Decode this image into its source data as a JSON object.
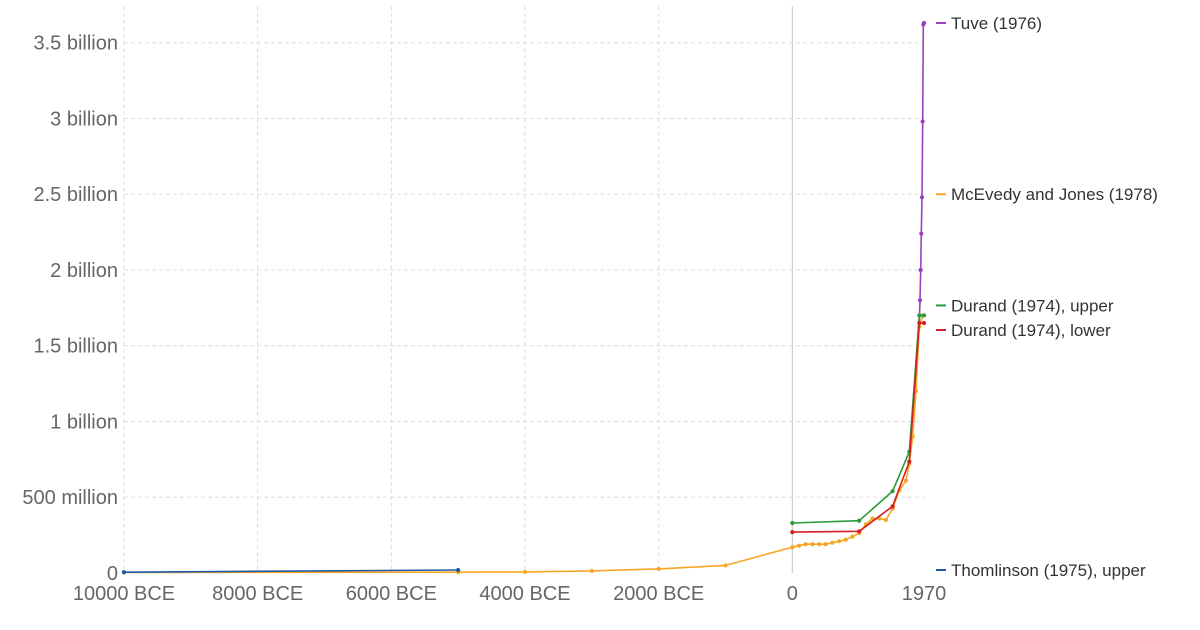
{
  "chart_data": {
    "type": "line",
    "title": "",
    "xlabel": "",
    "ylabel": "",
    "xlim": [
      -10000,
      1970
    ],
    "ylim": [
      0,
      3650000000
    ],
    "grid": true,
    "legend_placement": "right, labels at line ends",
    "x_ticks": [
      {
        "value": -10000,
        "label": "10000 BCE"
      },
      {
        "value": -8000,
        "label": "8000 BCE"
      },
      {
        "value": -6000,
        "label": "6000 BCE"
      },
      {
        "value": -4000,
        "label": "4000 BCE"
      },
      {
        "value": -2000,
        "label": "2000 BCE"
      },
      {
        "value": 0,
        "label": "0"
      },
      {
        "value": 1970,
        "label": "1970"
      }
    ],
    "y_ticks": [
      {
        "value": 0,
        "label": "0"
      },
      {
        "value": 500000000,
        "label": "500 million"
      },
      {
        "value": 1000000000,
        "label": "1 billion"
      },
      {
        "value": 1500000000,
        "label": "1.5 billion"
      },
      {
        "value": 2000000000,
        "label": "2 billion"
      },
      {
        "value": 2500000000,
        "label": "2.5 billion"
      },
      {
        "value": 3000000000,
        "label": "3 billion"
      },
      {
        "value": 3500000000,
        "label": "3.5 billion"
      }
    ],
    "series": [
      {
        "name": "Tuve (1976)",
        "color": "#9b3fc0",
        "x": [
          1900,
          1910,
          1920,
          1930,
          1940,
          1950,
          1960,
          1970
        ],
        "y": [
          1650000000,
          1800000000,
          2000000000,
          2240000000,
          2480000000,
          2980000000,
          3620000000,
          3630000000
        ]
      },
      {
        "name": "McEvedy and Jones (1978)",
        "color": "#f5a623",
        "x": [
          -10000,
          -5000,
          -4000,
          -3000,
          -2000,
          -1000,
          0,
          100,
          200,
          300,
          400,
          500,
          600,
          700,
          800,
          900,
          1000,
          1100,
          1200,
          1300,
          1400,
          1500,
          1600,
          1700,
          1750,
          1800,
          1850,
          1900,
          1950,
          1970
        ],
        "y": [
          4000000,
          5000000,
          7000000,
          14000000,
          27000000,
          50000000,
          170000000,
          180000000,
          190000000,
          190000000,
          190000000,
          190000000,
          200000000,
          210000000,
          220000000,
          240000000,
          265000000,
          320000000,
          360000000,
          360000000,
          350000000,
          425000000,
          545000000,
          610000000,
          720000000,
          900000000,
          1200000000,
          1625000000,
          1700000000,
          1700000000
        ]
      },
      {
        "name": "Durand (1974), upper",
        "color": "#2a9a3a",
        "x": [
          0,
          1000,
          1500,
          1750,
          1900,
          1970
        ],
        "y": [
          330000000,
          345000000,
          540000000,
          800000000,
          1700000000,
          1700000000
        ]
      },
      {
        "name": "Durand (1974), lower",
        "color": "#d62020",
        "x": [
          0,
          1000,
          1500,
          1750,
          1900,
          1970
        ],
        "y": [
          270000000,
          275000000,
          440000000,
          735000000,
          1650000000,
          1650000000
        ]
      },
      {
        "name": "Thomlinson (1975), upper",
        "color": "#1f5aa6",
        "x": [
          -10000,
          -5000
        ],
        "y": [
          5000000,
          20000000
        ]
      }
    ],
    "legend": [
      {
        "name": "Tuve (1976)",
        "color": "#9b3fc0",
        "anchor_value": 3630000000
      },
      {
        "name": "McEvedy and Jones (1978)",
        "color": "#f5a623",
        "anchor_value": 2500000000
      },
      {
        "name": "Durand (1974), upper",
        "color": "#2a9a3a",
        "anchor_value": 1700000000
      },
      {
        "name": "Durand (1974), lower",
        "color": "#d62020",
        "anchor_value": 1650000000
      },
      {
        "name": "Thomlinson (1975), upper",
        "color": "#1f5aa6",
        "anchor_value": 0
      }
    ]
  }
}
